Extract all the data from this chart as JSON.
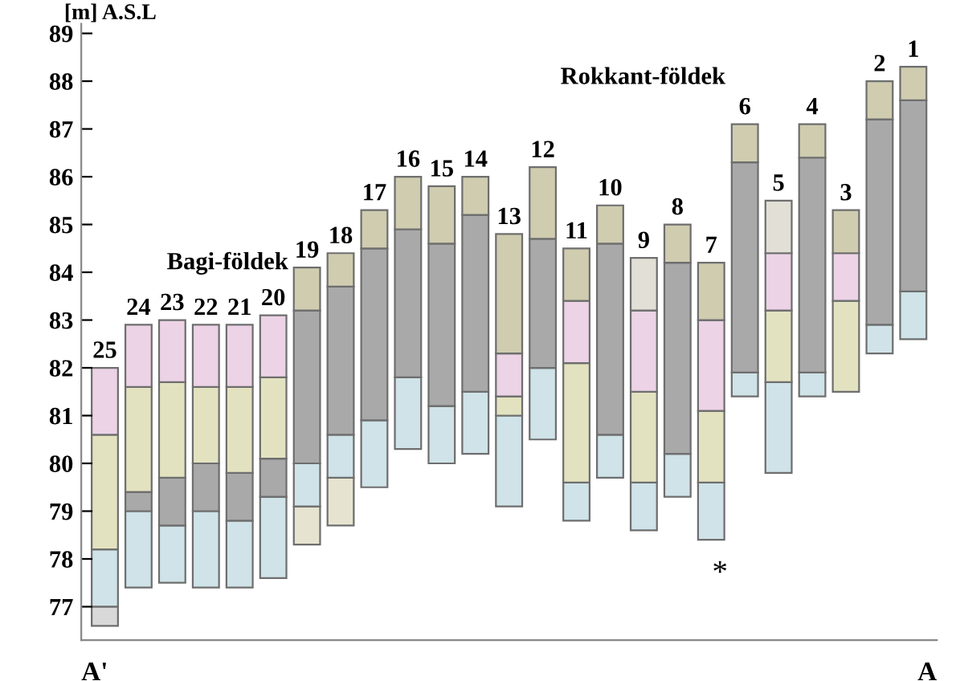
{
  "chart_data": {
    "type": "bar",
    "ylabel": "[m] A.S.L",
    "categories": [
      "25",
      "24",
      "23",
      "22",
      "21",
      "20",
      "19",
      "18",
      "17",
      "16",
      "15",
      "14",
      "13",
      "12",
      "11",
      "10",
      "9",
      "8",
      "7",
      "6",
      "5",
      "4",
      "3",
      "2",
      "1"
    ],
    "series": [
      {
        "base": [
          76.6,
          77.4,
          77.5,
          77.4,
          77.4,
          77.6,
          78.3,
          78.7,
          79.5,
          80.3,
          80.0,
          80.2,
          79.1,
          80.5,
          78.8,
          79.7,
          78.6,
          79.3,
          78.4,
          81.4,
          79.8,
          81.4,
          81.5,
          82.3,
          82.6
        ],
        "values": [
          0.4,
          1.6,
          1.2,
          1.6,
          1.4,
          1.7,
          0.8,
          1.0,
          1.4,
          1.5,
          1.2,
          1.3,
          1.9,
          1.5,
          0.8,
          0.9,
          1.0,
          0.9,
          1.2,
          0.5,
          1.9,
          0.5,
          1.9,
          0.6,
          1.0
        ],
        "colors": [
          "#d9d9d9",
          "#cfe3e8",
          "#cfe3e8",
          "#cfe3e8",
          "#cfe3e8",
          "#cfe3e8",
          "#e6e4d0",
          "#e6e4d0",
          "#cfe3e8",
          "#cfe3e8",
          "#cfe3e8",
          "#cfe3e8",
          "#cfe3e8",
          "#cfe3e8",
          "#cfe3e8",
          "#cfe3e8",
          "#cfe3e8",
          "#cfe3e8",
          "#cfe3e8",
          "#cfe3e8",
          "#cfe3e8",
          "#cfe3e8",
          "#e3e2c0",
          "#cfe3e8",
          "#cfe3e8"
        ]
      },
      {
        "base": [
          77.0,
          79.0,
          78.7,
          79.0,
          78.8,
          79.3,
          79.1,
          79.7,
          80.9,
          81.8,
          81.2,
          81.5,
          81.0,
          82.0,
          79.6,
          80.6,
          79.6,
          80.2,
          79.6,
          81.9,
          81.7,
          81.9,
          83.4,
          82.9,
          83.6
        ],
        "values": [
          1.2,
          0.4,
          1.0,
          1.0,
          1.0,
          0.8,
          0.9,
          0.9,
          3.6,
          3.1,
          3.4,
          3.7,
          0.4,
          2.7,
          2.5,
          4.0,
          1.9,
          4.0,
          1.5,
          4.4,
          1.5,
          4.5,
          1.0,
          4.3,
          4.0
        ],
        "colors": [
          "#cfe3e8",
          "#a9a9a9",
          "#a9a9a9",
          "#a9a9a9",
          "#a9a9a9",
          "#a9a9a9",
          "#cfe3e8",
          "#cfe3e8",
          "#a9a9a9",
          "#a9a9a9",
          "#a9a9a9",
          "#a9a9a9",
          "#e3e2c0",
          "#a9a9a9",
          "#e3e2c0",
          "#a9a9a9",
          "#e3e2c0",
          "#a9a9a9",
          "#e3e2c0",
          "#a9a9a9",
          "#e3e2c0",
          "#a9a9a9",
          "#ecd3e6",
          "#a9a9a9",
          "#a9a9a9"
        ]
      },
      {
        "base": [
          78.2,
          79.4,
          79.7,
          80.0,
          79.8,
          80.1,
          80.0,
          80.6,
          84.5,
          84.9,
          84.6,
          85.2,
          81.4,
          84.7,
          82.1,
          84.6,
          81.5,
          84.2,
          81.1,
          86.3,
          83.2,
          86.4,
          84.4,
          87.2,
          87.6
        ],
        "values": [
          2.4,
          2.2,
          2.0,
          1.6,
          1.8,
          1.7,
          3.2,
          3.1,
          0.8,
          1.1,
          1.2,
          0.8,
          0.9,
          1.5,
          1.3,
          0.8,
          1.7,
          0.8,
          1.9,
          0.8,
          1.2,
          0.7,
          0.9,
          0.8,
          0.7
        ],
        "colors": [
          "#e3e2c0",
          "#e3e2c0",
          "#e3e2c0",
          "#e3e2c0",
          "#e3e2c0",
          "#e3e2c0",
          "#a9a9a9",
          "#a9a9a9",
          "#cfccb0",
          "#cfccb0",
          "#cfccb0",
          "#cfccb0",
          "#ecd3e6",
          "#cfccb0",
          "#ecd3e6",
          "#cfccb0",
          "#ecd3e6",
          "#cfccb0",
          "#ecd3e6",
          "#cfccb0",
          "#ecd3e6",
          "#cfccb0",
          "#cfccb0",
          "#cfccb0",
          "#cfccb0"
        ]
      },
      {
        "base": [
          80.6,
          81.6,
          81.7,
          81.6,
          81.6,
          81.8,
          83.2,
          83.7,
          null,
          null,
          null,
          null,
          82.3,
          null,
          83.4,
          null,
          83.2,
          null,
          83.0,
          null,
          84.4,
          null,
          null,
          null,
          null
        ],
        "values": [
          1.4,
          1.3,
          1.3,
          1.3,
          1.3,
          1.3,
          0.9,
          0.7,
          null,
          null,
          null,
          null,
          2.5,
          null,
          1.1,
          null,
          1.1,
          null,
          1.2,
          null,
          1.1,
          null,
          null,
          null,
          null
        ],
        "colors": [
          "#ecd3e6",
          "#ecd3e6",
          "#ecd3e6",
          "#ecd3e6",
          "#ecd3e6",
          "#ecd3e6",
          "#cfccb0",
          "#cfccb0",
          null,
          null,
          null,
          null,
          "#cfccb0",
          null,
          "#cfccb0",
          null,
          "#e2e0d6",
          null,
          "#cfccb0",
          null,
          "#e2e0d6",
          null,
          null,
          null,
          null
        ]
      }
    ],
    "ylim": [
      76.3,
      89.2
    ],
    "yticks": [
      77,
      78,
      79,
      80,
      81,
      82,
      83,
      84,
      85,
      86,
      87,
      88,
      89
    ],
    "tick_labels": "y",
    "grid": false,
    "annotations": [
      "Bagi-földek",
      "Rokkant-földek",
      "A'",
      "A",
      "*"
    ]
  }
}
